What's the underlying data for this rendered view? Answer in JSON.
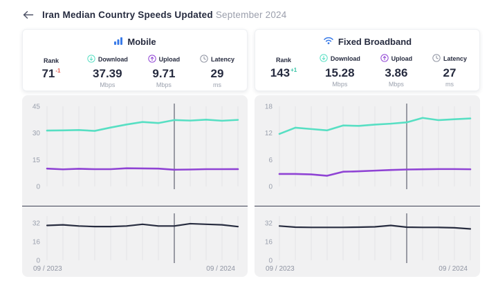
{
  "header": {
    "back_glyph": "←",
    "title_main": "Iran Median Country Speeds Updated",
    "title_date": "September 2024"
  },
  "colors": {
    "download_line": "#57dfc3",
    "upload_line": "#8f43d4",
    "latency_line": "#272c3f",
    "brand_blue": "#3a7be8",
    "rank_down_red": "#e4584d",
    "rank_up_green": "#35c3a5",
    "card_bg": "#f1f1f2",
    "grid_line": "#e4e4e7",
    "cursor_line": "#3e4254",
    "text_dark": "#262b3f",
    "text_muted": "#9aa0ad"
  },
  "panels": [
    {
      "title": "Mobile",
      "icon": "signal-bars-icon",
      "stats": [
        {
          "label": "Rank",
          "value": "71",
          "delta": "-1",
          "unit": ""
        },
        {
          "label": "Download",
          "value": "37.39",
          "unit": "Mbps"
        },
        {
          "label": "Upload",
          "value": "9.71",
          "unit": "Mbps"
        },
        {
          "label": "Latency",
          "value": "29",
          "unit": "ms"
        }
      ],
      "x_axis": {
        "start": "09 / 2023",
        "end": "09 / 2024"
      }
    },
    {
      "title": "Fixed Broadband",
      "icon": "wifi-icon",
      "stats": [
        {
          "label": "Rank",
          "value": "143",
          "delta": "+1",
          "unit": ""
        },
        {
          "label": "Download",
          "value": "15.28",
          "unit": "Mbps"
        },
        {
          "label": "Upload",
          "value": "3.86",
          "unit": "Mbps"
        },
        {
          "label": "Latency",
          "value": "27",
          "unit": "ms"
        }
      ],
      "x_axis": {
        "start": "09 / 2023",
        "end": "09 / 2024"
      }
    }
  ],
  "chart_data": [
    {
      "type": "line",
      "kind": "speed",
      "panel": "Mobile",
      "ylabel": "Mbps",
      "ylim": [
        0,
        45
      ],
      "yticks": [
        45,
        30,
        15,
        0
      ],
      "grid": "vertical-monthly",
      "legend": "none",
      "cursor_index": 8,
      "x": [
        "09/2023",
        "10/2023",
        "11/2023",
        "12/2023",
        "01/2024",
        "02/2024",
        "03/2024",
        "04/2024",
        "05/2024",
        "06/2024",
        "07/2024",
        "08/2024",
        "09/2024"
      ],
      "series": [
        {
          "name": "Download",
          "color": "#57dfc3",
          "values": [
            31.4,
            31.5,
            31.7,
            31.2,
            33.1,
            34.8,
            36.2,
            35.6,
            37.3,
            37.0,
            37.5,
            36.9,
            37.39
          ]
        },
        {
          "name": "Upload",
          "color": "#8f43d4",
          "values": [
            10.0,
            9.6,
            9.9,
            9.7,
            9.7,
            10.2,
            10.1,
            10.0,
            9.4,
            9.5,
            9.7,
            9.7,
            9.71
          ]
        }
      ]
    },
    {
      "type": "line",
      "kind": "latency",
      "panel": "Mobile",
      "ylabel": "ms",
      "ylim": [
        0,
        38
      ],
      "yticks": [
        32,
        16,
        0
      ],
      "grid": "vertical-monthly",
      "legend": "none",
      "cursor_index": 8,
      "x": [
        "09/2023",
        "10/2023",
        "11/2023",
        "12/2023",
        "01/2024",
        "02/2024",
        "03/2024",
        "04/2024",
        "05/2024",
        "06/2024",
        "07/2024",
        "08/2024",
        "09/2024"
      ],
      "series": [
        {
          "name": "Latency",
          "color": "#272c3f",
          "values": [
            30.0,
            30.5,
            29.5,
            29.0,
            29.0,
            29.5,
            31.0,
            29.5,
            29.5,
            31.5,
            31.0,
            30.5,
            29.0
          ]
        }
      ]
    },
    {
      "type": "line",
      "kind": "speed",
      "panel": "Fixed Broadband",
      "ylabel": "Mbps",
      "ylim": [
        0,
        18
      ],
      "yticks": [
        18,
        12,
        6,
        0
      ],
      "grid": "vertical-monthly",
      "legend": "none",
      "cursor_index": 8,
      "x": [
        "09/2023",
        "10/2023",
        "11/2023",
        "12/2023",
        "01/2024",
        "02/2024",
        "03/2024",
        "04/2024",
        "05/2024",
        "06/2024",
        "07/2024",
        "08/2024",
        "09/2024"
      ],
      "series": [
        {
          "name": "Download",
          "color": "#57dfc3",
          "values": [
            11.8,
            13.2,
            12.9,
            12.6,
            13.7,
            13.6,
            13.9,
            14.1,
            14.4,
            15.4,
            14.9,
            15.1,
            15.28
          ]
        },
        {
          "name": "Upload",
          "color": "#8f43d4",
          "values": [
            2.8,
            2.8,
            2.7,
            2.4,
            3.3,
            3.4,
            3.55,
            3.7,
            3.8,
            3.85,
            3.9,
            3.9,
            3.86
          ]
        }
      ]
    },
    {
      "type": "line",
      "kind": "latency",
      "panel": "Fixed Broadband",
      "ylabel": "ms",
      "ylim": [
        0,
        38
      ],
      "yticks": [
        32,
        16,
        0
      ],
      "grid": "vertical-monthly",
      "legend": "none",
      "cursor_index": 8,
      "x": [
        "09/2023",
        "10/2023",
        "11/2023",
        "12/2023",
        "01/2024",
        "02/2024",
        "03/2024",
        "04/2024",
        "05/2024",
        "06/2024",
        "07/2024",
        "08/2024",
        "09/2024"
      ],
      "series": [
        {
          "name": "Latency",
          "color": "#272c3f",
          "values": [
            29.5,
            28.5,
            28.3,
            28.3,
            28.3,
            28.5,
            28.8,
            30.0,
            28.5,
            28.3,
            28.3,
            28.0,
            27.0
          ]
        }
      ]
    }
  ]
}
